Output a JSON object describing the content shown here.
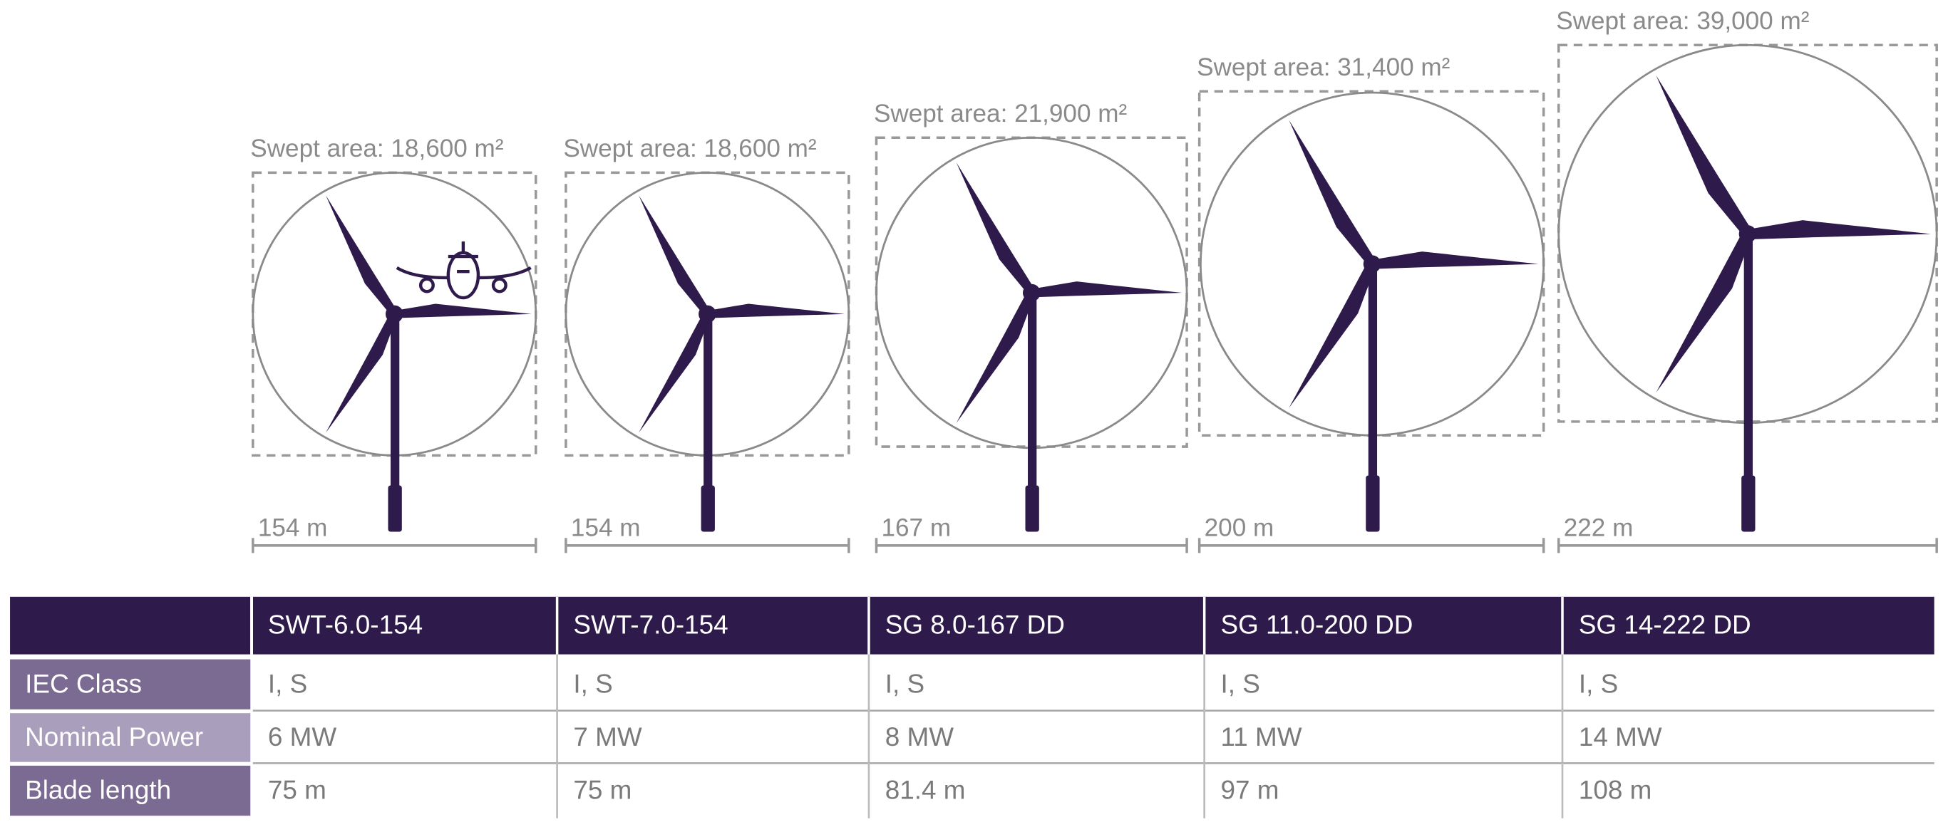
{
  "turbines": [
    {
      "swept_area": "Swept area: 18,600 m²",
      "diameter": "154 m"
    },
    {
      "swept_area": "Swept area: 18,600 m²",
      "diameter": "154 m"
    },
    {
      "swept_area": "Swept area: 21,900 m²",
      "diameter": "167 m"
    },
    {
      "swept_area": "Swept area: 31,400 m²",
      "diameter": "200 m"
    },
    {
      "swept_area": "Swept area: 39,000 m²",
      "diameter": "222 m"
    }
  ],
  "table": {
    "header": [
      "SWT-6.0-154",
      "SWT-7.0-154",
      "SG 8.0-167 DD",
      "SG 11.0-200 DD",
      "SG 14-222 DD"
    ],
    "rows": [
      {
        "label": "IEC Class",
        "cells": [
          "I, S",
          "I, S",
          "I, S",
          "I, S",
          "I, S"
        ]
      },
      {
        "label": "Nominal Power",
        "cells": [
          "6 MW",
          "7 MW",
          "8 MW",
          "11 MW",
          "14 MW"
        ]
      },
      {
        "label": "Blade length",
        "cells": [
          "75 m",
          "75 m",
          "81.4 m",
          "97 m",
          "108 m"
        ]
      }
    ]
  }
}
